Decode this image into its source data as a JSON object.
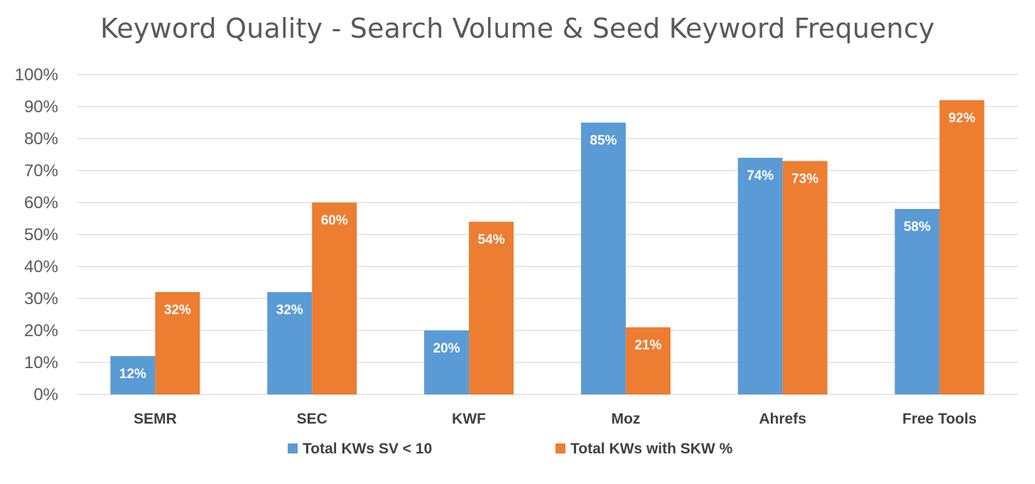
{
  "chart_data": {
    "type": "bar",
    "title": "Keyword Quality - Search Volume & Seed Keyword Frequency",
    "categories": [
      "SEMR",
      "SEC",
      "KWF",
      "Moz",
      "Ahrefs",
      "Free Tools"
    ],
    "series": [
      {
        "name": "Total KWs SV < 10",
        "values": [
          12,
          32,
          20,
          85,
          74,
          58
        ],
        "labels": [
          "12%",
          "32%",
          "20%",
          "85%",
          "74%",
          "58%"
        ],
        "color": "#5B9BD5"
      },
      {
        "name": "Total KWs with SKW %",
        "values": [
          32,
          60,
          54,
          21,
          73,
          92
        ],
        "labels": [
          "32%",
          "60%",
          "54%",
          "21%",
          "73%",
          "92%"
        ],
        "color": "#ED7D31"
      }
    ],
    "ylim": [
      0,
      100
    ],
    "yticks": [
      "0%",
      "10%",
      "20%",
      "30%",
      "40%",
      "50%",
      "60%",
      "70%",
      "80%",
      "90%",
      "100%"
    ],
    "grid": true,
    "legend_position": "bottom",
    "gridline_color": "#D9D9D9"
  }
}
